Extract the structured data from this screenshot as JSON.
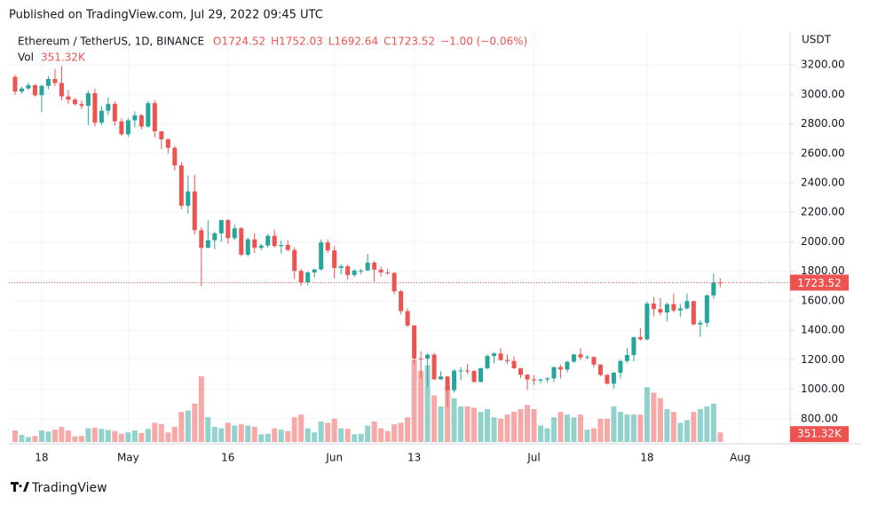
{
  "published": "Published on TradingView.com, Jul 29, 2022 09:45 UTC",
  "brand": "TradingView",
  "chart_data": {
    "type": "candlestick",
    "title": "Ethereum / TetherUS, 1D, BINANCE",
    "legend_values": [
      "O1724.52",
      "H1752.03",
      "L1692.64",
      "C1723.52",
      "−1.00 (−0.06%)"
    ],
    "volume_title": "Vol",
    "volume_label": "351.32K",
    "last_label": "1723.52",
    "y_axis_label": "USDT",
    "up_color": "#26a69a",
    "down_color": "#ef5350",
    "grid": true,
    "xlim": [
      -0.93,
      116.5
    ],
    "xticks": [
      {
        "value": 4,
        "label": "18"
      },
      {
        "value": 17,
        "label": "May"
      },
      {
        "value": 32,
        "label": "16"
      },
      {
        "value": 48,
        "label": "Jun"
      },
      {
        "value": 60,
        "label": "13"
      },
      {
        "value": 78,
        "label": "Jul"
      },
      {
        "value": 95,
        "label": "18"
      },
      {
        "value": 109,
        "label": "Aug"
      }
    ],
    "ylim": [
      643,
      3429
    ],
    "yticks": [
      {
        "value": 800,
        "label": "800.00"
      },
      {
        "value": 1000,
        "label": "1000.00"
      },
      {
        "value": 1200,
        "label": "1200.00"
      },
      {
        "value": 1400,
        "label": "1400.00"
      },
      {
        "value": 1600,
        "label": "1600.00"
      },
      {
        "value": 1800,
        "label": "1800.00"
      },
      {
        "value": 2000,
        "label": "2000.00"
      },
      {
        "value": 2200,
        "label": "2200.00"
      },
      {
        "value": 2400,
        "label": "2400.00"
      },
      {
        "value": 2600,
        "label": "2600.00"
      },
      {
        "value": 2800,
        "label": "2800.00"
      },
      {
        "value": 3000,
        "label": "3000.00"
      },
      {
        "value": 3200,
        "label": "3200.00"
      }
    ],
    "volume_lim": [
      0,
      15000000
    ],
    "open": [
      3118,
      3019,
      3040,
      3062,
      2994,
      3057,
      3104,
      3077,
      2986,
      2964,
      2934,
      2922,
      3008,
      2808,
      2889,
      2935,
      2817,
      2729,
      2824,
      2857,
      2782,
      2940,
      2749,
      2695,
      2637,
      2518,
      2245,
      2342,
      2079,
      1960,
      2011,
      2057,
      2147,
      2025,
      2092,
      1913,
      2017,
      1959,
      1975,
      2041,
      1971,
      1979,
      1945,
      1803,
      1725,
      1792,
      1813,
      1996,
      1942,
      1823,
      1834,
      1775,
      1805,
      1806,
      1859,
      1812,
      1793,
      1789,
      1665,
      1530,
      1433,
      1209,
      1208,
      1235,
      1068,
      1087,
      994,
      1127,
      1128,
      1124,
      1050,
      1143,
      1226,
      1243,
      1199,
      1192,
      1143,
      1099,
      1067,
      1060,
      1067,
      1074,
      1151,
      1134,
      1187,
      1237,
      1216,
      1219,
      1168,
      1098,
      1038,
      1113,
      1192,
      1233,
      1354,
      1339,
      1581,
      1544,
      1521,
      1577,
      1535,
      1549,
      1598,
      1440,
      1451,
      1637,
      1724.52
    ],
    "high": [
      3133,
      3052,
      3080,
      3072,
      3066,
      3125,
      3172,
      3190,
      3030,
      2977,
      2960,
      3025,
      3038,
      2920,
      2980,
      2953,
      2838,
      2836,
      2885,
      2866,
      2954,
      2961,
      2752,
      2704,
      2650,
      2540,
      2450,
      2456,
      2100,
      2145,
      2070,
      2151,
      2155,
      2115,
      2100,
      2030,
      2057,
      1988,
      2054,
      2082,
      2008,
      2009,
      1964,
      1816,
      1800,
      1818,
      2015,
      2017,
      1971,
      1848,
      1846,
      1816,
      1815,
      1918,
      1868,
      1832,
      1818,
      1793,
      1676,
      1549,
      1433,
      1259,
      1243,
      1247,
      1123,
      1090,
      1136,
      1151,
      1173,
      1132,
      1146,
      1237,
      1250,
      1280,
      1236,
      1222,
      1145,
      1104,
      1095,
      1074,
      1082,
      1152,
      1166,
      1193,
      1240,
      1279,
      1232,
      1223,
      1169,
      1102,
      1117,
      1200,
      1280,
      1357,
      1415,
      1595,
      1627,
      1620,
      1590,
      1647,
      1578,
      1650,
      1600,
      1470,
      1645,
      1785,
      1752.03
    ],
    "low": [
      2996,
      3005,
      3030,
      2985,
      2880,
      3035,
      3055,
      2960,
      2935,
      2925,
      2900,
      2790,
      2783,
      2790,
      2860,
      2787,
      2720,
      2712,
      2776,
      2762,
      2774,
      2706,
      2630,
      2600,
      2485,
      2220,
      2192,
      2050,
      1700,
      1955,
      1950,
      2000,
      1988,
      2012,
      1904,
      1900,
      1924,
      1944,
      1960,
      1960,
      1920,
      1935,
      1748,
      1700,
      1705,
      1758,
      1806,
      1926,
      1752,
      1780,
      1746,
      1762,
      1780,
      1804,
      1730,
      1764,
      1776,
      1644,
      1508,
      1421,
      1170,
      1072,
      1016,
      1063,
      1065,
      881,
      978,
      1062,
      1104,
      1046,
      1047,
      1134,
      1176,
      1193,
      1170,
      1137,
      1076,
      996,
      1030,
      1040,
      1045,
      1050,
      1073,
      1114,
      1180,
      1200,
      1204,
      1150,
      1087,
      1033,
      1006,
      1073,
      1177,
      1190,
      1330,
      1331,
      1494,
      1501,
      1460,
      1520,
      1493,
      1540,
      1434,
      1356,
      1425,
      1614,
      1692.64
    ],
    "close": [
      3019,
      3040,
      3062,
      2994,
      3057,
      3104,
      3077,
      2986,
      2964,
      2934,
      2922,
      3008,
      2808,
      2889,
      2935,
      2817,
      2729,
      2824,
      2857,
      2782,
      2940,
      2749,
      2695,
      2637,
      2518,
      2245,
      2342,
      2079,
      1960,
      2011,
      2057,
      2147,
      2025,
      2092,
      1913,
      2017,
      1959,
      1975,
      2041,
      1971,
      1979,
      1945,
      1803,
      1725,
      1792,
      1813,
      1996,
      1942,
      1823,
      1834,
      1775,
      1805,
      1806,
      1859,
      1812,
      1793,
      1789,
      1665,
      1530,
      1433,
      1209,
      1208,
      1235,
      1068,
      1087,
      994,
      1127,
      1128,
      1124,
      1050,
      1143,
      1226,
      1243,
      1199,
      1192,
      1143,
      1099,
      1067,
      1060,
      1067,
      1074,
      1151,
      1134,
      1187,
      1237,
      1216,
      1219,
      1168,
      1098,
      1038,
      1113,
      1192,
      1233,
      1354,
      1339,
      1581,
      1544,
      1521,
      1577,
      1535,
      1549,
      1598,
      1440,
      1451,
      1637,
      1725,
      1723.52
    ],
    "volume": [
      420000,
      260000,
      180000,
      220000,
      420000,
      380000,
      450000,
      550000,
      420000,
      200000,
      220000,
      500000,
      520000,
      480000,
      440000,
      400000,
      300000,
      350000,
      420000,
      330000,
      480000,
      700000,
      650000,
      350000,
      550000,
      1100000,
      1150000,
      1400000,
      2400000,
      900000,
      550000,
      500000,
      700000,
      600000,
      650000,
      600000,
      550000,
      280000,
      300000,
      500000,
      450000,
      400000,
      900000,
      1000000,
      500000,
      350000,
      750000,
      700000,
      850000,
      500000,
      480000,
      280000,
      300000,
      600000,
      750000,
      500000,
      400000,
      650000,
      700000,
      900000,
      3000000,
      2600000,
      2800000,
      1700000,
      1300000,
      2000000,
      1600000,
      1300000,
      1300000,
      1250000,
      1100000,
      1200000,
      900000,
      850000,
      1000000,
      1100000,
      1200000,
      1350000,
      1200000,
      600000,
      500000,
      900000,
      1100000,
      1000000,
      900000,
      1000000,
      450000,
      500000,
      850000,
      850000,
      1300000,
      1100000,
      1000000,
      1000000,
      1000000,
      2000000,
      1800000,
      1600000,
      1200000,
      1100000,
      700000,
      800000,
      1100000,
      1200000,
      1300000,
      1400000,
      351320
    ]
  }
}
